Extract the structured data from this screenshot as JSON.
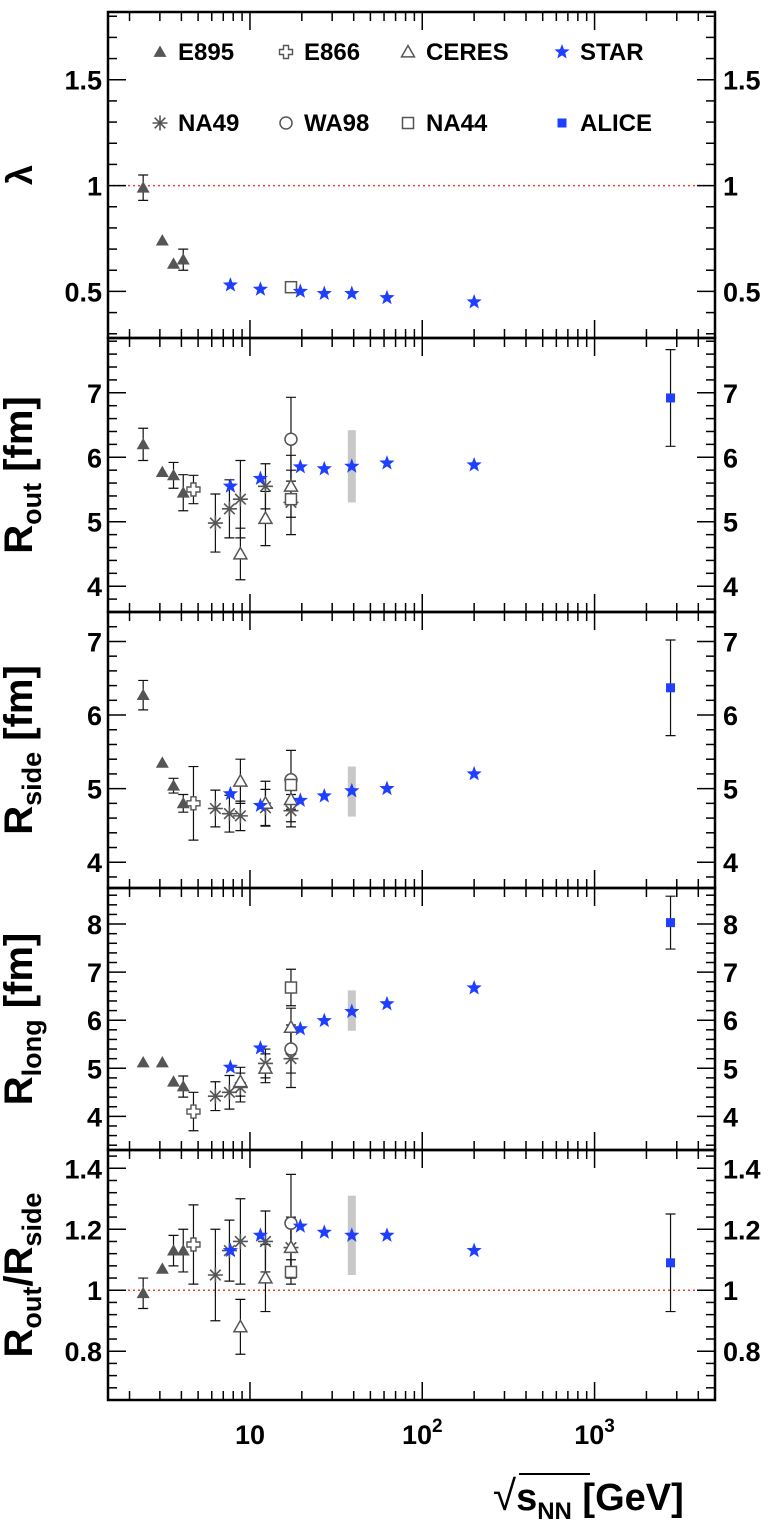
{
  "chart_data": {
    "type": "scatter",
    "x_scale": "log",
    "xlim": [
      1.5,
      5000
    ],
    "x_ticks": [
      {
        "value": 10,
        "label": "10"
      },
      {
        "value": 100,
        "label": "10",
        "exp": "2"
      },
      {
        "value": 1000,
        "label": "10",
        "exp": "3"
      }
    ],
    "xlabel": {
      "sqrt": "√",
      "main": "s",
      "sub": "NN",
      "unit": " [GeV]"
    },
    "legend": [
      {
        "name": "E895",
        "marker": "triangle",
        "color": "#555555"
      },
      {
        "name": "E866",
        "marker": "cross-open",
        "color": "#555555"
      },
      {
        "name": "CERES",
        "marker": "triangle-open",
        "color": "#555555"
      },
      {
        "name": "STAR",
        "marker": "star",
        "color": "#1f3fff"
      },
      {
        "name": "NA49",
        "marker": "asterisk",
        "color": "#555555"
      },
      {
        "name": "WA98",
        "marker": "circle-open",
        "color": "#555555"
      },
      {
        "name": "NA44",
        "marker": "square-open",
        "color": "#555555"
      },
      {
        "name": "ALICE",
        "marker": "square",
        "color": "#1f3fff"
      }
    ],
    "panels": [
      {
        "ylabel": {
          "main": "λ",
          "sub": ""
        },
        "ylim": [
          0.28,
          1.82
        ],
        "yticks": [
          "0.5",
          "1",
          "1.5"
        ],
        "reference_line": 1,
        "series": [
          {
            "name": "E895",
            "points": [
              {
                "x": 2.4,
                "y": 0.99,
                "err": 0.06
              },
              {
                "x": 3.1,
                "y": 0.74
              },
              {
                "x": 3.6,
                "y": 0.63
              },
              {
                "x": 4.1,
                "y": 0.65,
                "err": 0.05
              }
            ]
          },
          {
            "name": "NA44",
            "points": [
              {
                "x": 17.3,
                "y": 0.52
              }
            ]
          },
          {
            "name": "STAR",
            "points": [
              {
                "x": 7.7,
                "y": 0.53
              },
              {
                "x": 11.5,
                "y": 0.51
              },
              {
                "x": 19.6,
                "y": 0.5
              },
              {
                "x": 27,
                "y": 0.49
              },
              {
                "x": 39,
                "y": 0.49
              },
              {
                "x": 62.4,
                "y": 0.47
              },
              {
                "x": 200,
                "y": 0.45
              }
            ]
          }
        ]
      },
      {
        "ylabel": {
          "main": "R",
          "sub": "out",
          "unit": " [fm]"
        },
        "ylim": [
          3.6,
          7.85
        ],
        "yticks": [
          "4",
          "5",
          "6",
          "7"
        ],
        "series": [
          {
            "name": "E895",
            "points": [
              {
                "x": 2.4,
                "y": 6.2,
                "err": 0.25
              },
              {
                "x": 3.1,
                "y": 5.77
              },
              {
                "x": 3.6,
                "y": 5.72,
                "err": 0.2
              },
              {
                "x": 4.1,
                "y": 5.45,
                "err": 0.28
              }
            ]
          },
          {
            "name": "E866",
            "points": [
              {
                "x": 4.7,
                "y": 5.5,
                "err": 0.22
              }
            ]
          },
          {
            "name": "NA49",
            "points": [
              {
                "x": 6.3,
                "y": 4.98,
                "err": 0.45
              },
              {
                "x": 7.6,
                "y": 5.2,
                "err": 0.45
              },
              {
                "x": 8.8,
                "y": 5.35,
                "err": 0.6
              },
              {
                "x": 12.3,
                "y": 5.55,
                "err": 0.35
              },
              {
                "x": 17.3,
                "y": 5.3,
                "err": 0.5
              }
            ]
          },
          {
            "name": "CERES",
            "points": [
              {
                "x": 8.8,
                "y": 4.5,
                "err": 0.4
              },
              {
                "x": 12.3,
                "y": 5.05,
                "err": 0.42
              },
              {
                "x": 17.3,
                "y": 5.55,
                "err": 0.48
              }
            ]
          },
          {
            "name": "WA98",
            "points": [
              {
                "x": 17.3,
                "y": 6.28,
                "err": 0.65
              }
            ]
          },
          {
            "name": "NA44",
            "points": [
              {
                "x": 17.3,
                "y": 5.35
              }
            ]
          },
          {
            "name": "STAR",
            "points": [
              {
                "x": 7.7,
                "y": 5.55
              },
              {
                "x": 11.5,
                "y": 5.67
              },
              {
                "x": 19.6,
                "y": 5.85
              },
              {
                "x": 27,
                "y": 5.82
              },
              {
                "x": 39,
                "y": 5.86
              },
              {
                "x": 62.4,
                "y": 5.91
              },
              {
                "x": 200,
                "y": 5.88
              }
            ],
            "sys": {
              "x": 39,
              "lo": 5.3,
              "hi": 6.42
            }
          },
          {
            "name": "ALICE",
            "points": [
              {
                "x": 2760,
                "y": 6.92,
                "err": 0.75
              }
            ]
          }
        ]
      },
      {
        "ylabel": {
          "main": "R",
          "sub": "side",
          "unit": " [fm]"
        },
        "ylim": [
          3.65,
          7.4
        ],
        "yticks": [
          "4",
          "5",
          "6",
          "7"
        ],
        "series": [
          {
            "name": "E895",
            "points": [
              {
                "x": 2.4,
                "y": 6.27,
                "err": 0.2
              },
              {
                "x": 3.1,
                "y": 5.35
              },
              {
                "x": 3.6,
                "y": 5.04,
                "err": 0.1
              },
              {
                "x": 4.1,
                "y": 4.8,
                "err": 0.12
              }
            ]
          },
          {
            "name": "E866",
            "points": [
              {
                "x": 4.7,
                "y": 4.8,
                "err": 0.5
              }
            ]
          },
          {
            "name": "NA49",
            "points": [
              {
                "x": 6.3,
                "y": 4.73,
                "err": 0.25
              },
              {
                "x": 7.6,
                "y": 4.66,
                "err": 0.25
              },
              {
                "x": 8.8,
                "y": 4.63,
                "err": 0.2
              },
              {
                "x": 12.3,
                "y": 4.74,
                "err": 0.25
              },
              {
                "x": 17.3,
                "y": 4.7,
                "err": 0.22
              }
            ]
          },
          {
            "name": "CERES",
            "points": [
              {
                "x": 8.8,
                "y": 5.1,
                "err": 0.3
              },
              {
                "x": 12.3,
                "y": 4.8,
                "err": 0.3
              },
              {
                "x": 17.3,
                "y": 4.85,
                "err": 0.3
              }
            ]
          },
          {
            "name": "WA98",
            "points": [
              {
                "x": 17.3,
                "y": 5.12,
                "err": 0.4
              }
            ]
          },
          {
            "name": "NA44",
            "points": [
              {
                "x": 17.3,
                "y": 5.05
              }
            ]
          },
          {
            "name": "STAR",
            "points": [
              {
                "x": 7.7,
                "y": 4.93
              },
              {
                "x": 11.5,
                "y": 4.77
              },
              {
                "x": 19.6,
                "y": 4.84
              },
              {
                "x": 27,
                "y": 4.9
              },
              {
                "x": 39,
                "y": 4.97
              },
              {
                "x": 62.4,
                "y": 5.0
              },
              {
                "x": 200,
                "y": 5.2
              }
            ],
            "sys": {
              "x": 39,
              "lo": 4.62,
              "hi": 5.3
            }
          },
          {
            "name": "ALICE",
            "points": [
              {
                "x": 2760,
                "y": 6.37,
                "err": 0.65
              }
            ]
          }
        ]
      },
      {
        "ylabel": {
          "main": "R",
          "sub": "long",
          "unit": " [fm]"
        },
        "ylim": [
          3.3,
          8.75
        ],
        "yticks": [
          "4",
          "5",
          "6",
          "7",
          "8"
        ],
        "series": [
          {
            "name": "E895",
            "points": [
              {
                "x": 2.4,
                "y": 5.12
              },
              {
                "x": 3.1,
                "y": 5.12
              },
              {
                "x": 3.6,
                "y": 4.72
              },
              {
                "x": 4.1,
                "y": 4.62,
                "err": 0.22
              }
            ]
          },
          {
            "name": "E866",
            "points": [
              {
                "x": 4.7,
                "y": 4.1,
                "err": 0.4
              }
            ]
          },
          {
            "name": "NA49",
            "points": [
              {
                "x": 6.3,
                "y": 4.42,
                "err": 0.3
              },
              {
                "x": 7.6,
                "y": 4.5,
                "err": 0.35
              },
              {
                "x": 8.8,
                "y": 4.6,
                "err": 0.3
              },
              {
                "x": 12.3,
                "y": 5.1,
                "err": 0.3
              },
              {
                "x": 17.3,
                "y": 5.2,
                "err": 0.6
              }
            ]
          },
          {
            "name": "CERES",
            "points": [
              {
                "x": 8.8,
                "y": 4.72,
                "err": 0.3
              },
              {
                "x": 12.3,
                "y": 5.0,
                "err": 0.3
              },
              {
                "x": 17.3,
                "y": 5.85,
                "err": 0.4
              }
            ]
          },
          {
            "name": "WA98",
            "points": [
              {
                "x": 17.3,
                "y": 5.4,
                "err": 0.5
              }
            ]
          },
          {
            "name": "NA44",
            "points": [
              {
                "x": 17.3,
                "y": 6.68,
                "err": 0.38
              }
            ]
          },
          {
            "name": "STAR",
            "points": [
              {
                "x": 7.7,
                "y": 5.02
              },
              {
                "x": 11.5,
                "y": 5.42
              },
              {
                "x": 19.6,
                "y": 5.82
              },
              {
                "x": 27,
                "y": 5.99
              },
              {
                "x": 39,
                "y": 6.18
              },
              {
                "x": 62.4,
                "y": 6.34
              },
              {
                "x": 200,
                "y": 6.67
              }
            ],
            "sys": {
              "x": 39,
              "lo": 5.78,
              "hi": 6.62
            }
          },
          {
            "name": "ALICE",
            "points": [
              {
                "x": 2760,
                "y": 8.03,
                "err": 0.55
              }
            ]
          }
        ]
      },
      {
        "ylabel": {
          "main": "R",
          "sub": "out",
          "main2": "/R",
          "sub2": "side"
        },
        "ylim": [
          0.64,
          1.46
        ],
        "yticks": [
          "0.8",
          "1",
          "1.2",
          "1.4"
        ],
        "reference_line": 1,
        "series": [
          {
            "name": "E895",
            "points": [
              {
                "x": 2.4,
                "y": 0.99,
                "err": 0.05
              },
              {
                "x": 3.1,
                "y": 1.07
              },
              {
                "x": 3.6,
                "y": 1.13,
                "err": 0.05
              },
              {
                "x": 4.1,
                "y": 1.13,
                "err": 0.07
              }
            ]
          },
          {
            "name": "E866",
            "points": [
              {
                "x": 4.7,
                "y": 1.15,
                "err": 0.13
              }
            ]
          },
          {
            "name": "NA49",
            "points": [
              {
                "x": 6.3,
                "y": 1.05,
                "err": 0.15
              },
              {
                "x": 7.6,
                "y": 1.13,
                "err": 0.1
              },
              {
                "x": 8.8,
                "y": 1.16,
                "err": 0.14
              },
              {
                "x": 12.3,
                "y": 1.16,
                "err": 0.1
              },
              {
                "x": 17.3,
                "y": 1.14,
                "err": 0.1
              }
            ]
          },
          {
            "name": "CERES",
            "points": [
              {
                "x": 8.8,
                "y": 0.88,
                "err": 0.09
              },
              {
                "x": 12.3,
                "y": 1.04,
                "err": 0.11
              },
              {
                "x": 17.3,
                "y": 1.14,
                "err": 0.1
              }
            ]
          },
          {
            "name": "WA98",
            "points": [
              {
                "x": 17.3,
                "y": 1.22,
                "err": 0.16
              }
            ]
          },
          {
            "name": "NA44",
            "points": [
              {
                "x": 17.3,
                "y": 1.06,
                "err": 0.04
              }
            ]
          },
          {
            "name": "STAR",
            "points": [
              {
                "x": 7.7,
                "y": 1.13
              },
              {
                "x": 11.5,
                "y": 1.18
              },
              {
                "x": 19.6,
                "y": 1.21
              },
              {
                "x": 27,
                "y": 1.19
              },
              {
                "x": 39,
                "y": 1.18
              },
              {
                "x": 62.4,
                "y": 1.18
              },
              {
                "x": 200,
                "y": 1.13
              }
            ],
            "sys": {
              "x": 39,
              "lo": 1.05,
              "hi": 1.31
            }
          },
          {
            "name": "ALICE",
            "points": [
              {
                "x": 2760,
                "y": 1.09,
                "err": 0.16
              }
            ]
          }
        ]
      }
    ]
  }
}
